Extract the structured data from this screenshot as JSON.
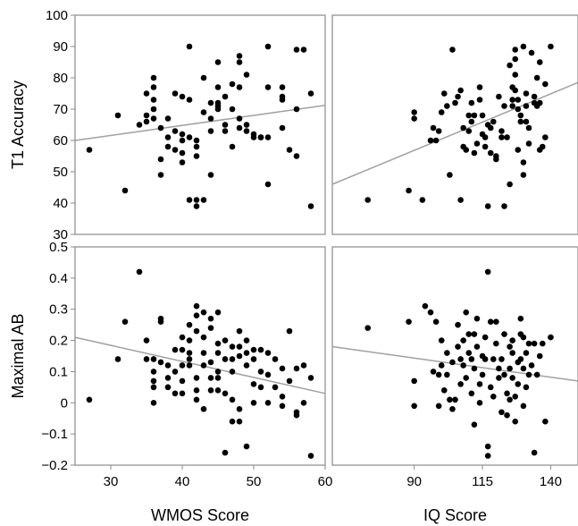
{
  "chart_data": [
    {
      "type": "scatter",
      "id": "t1-wmos",
      "xlabel": "",
      "ylabel": "T1 Accuracy",
      "xlim": [
        25,
        60
      ],
      "ylim": [
        30,
        100
      ],
      "xticks": [],
      "yticks": [
        30,
        40,
        50,
        60,
        70,
        80,
        90,
        100
      ],
      "trend": {
        "x0": 25,
        "y0": 60,
        "x1": 60,
        "y1": 71.2
      },
      "points": [
        [
          27,
          57
        ],
        [
          31,
          68
        ],
        [
          32,
          44
        ],
        [
          34,
          65
        ],
        [
          35,
          75
        ],
        [
          35,
          66
        ],
        [
          35,
          68
        ],
        [
          36,
          80
        ],
        [
          36,
          77
        ],
        [
          36,
          73
        ],
        [
          36,
          70
        ],
        [
          36,
          67
        ],
        [
          37,
          54
        ],
        [
          37,
          49
        ],
        [
          37,
          64
        ],
        [
          38,
          58
        ],
        [
          38,
          61
        ],
        [
          38,
          67
        ],
        [
          39,
          75
        ],
        [
          39,
          63
        ],
        [
          39,
          57
        ],
        [
          40,
          60
        ],
        [
          40,
          62
        ],
        [
          40,
          74
        ],
        [
          40,
          56
        ],
        [
          40,
          53
        ],
        [
          41,
          73
        ],
        [
          41,
          61
        ],
        [
          41,
          90
        ],
        [
          41,
          41
        ],
        [
          42,
          60
        ],
        [
          42,
          58
        ],
        [
          42,
          41
        ],
        [
          42,
          39
        ],
        [
          42,
          55
        ],
        [
          43,
          41
        ],
        [
          43,
          80
        ],
        [
          43,
          69
        ],
        [
          44,
          72
        ],
        [
          44,
          67
        ],
        [
          44,
          63
        ],
        [
          44,
          49
        ],
        [
          45,
          85
        ],
        [
          45,
          77
        ],
        [
          45,
          72
        ],
        [
          45,
          70
        ],
        [
          45,
          71
        ],
        [
          46,
          74
        ],
        [
          46,
          65
        ],
        [
          46,
          63
        ],
        [
          47,
          70
        ],
        [
          47,
          58
        ],
        [
          47,
          78
        ],
        [
          48,
          87
        ],
        [
          48,
          85
        ],
        [
          48,
          77
        ],
        [
          48,
          67
        ],
        [
          48,
          64
        ],
        [
          49,
          81
        ],
        [
          49,
          65
        ],
        [
          49,
          63
        ],
        [
          50,
          62
        ],
        [
          50,
          61
        ],
        [
          51,
          61
        ],
        [
          51,
          61
        ],
        [
          52,
          90
        ],
        [
          52,
          77
        ],
        [
          52,
          46
        ],
        [
          52,
          61
        ],
        [
          54,
          77
        ],
        [
          54,
          74
        ],
        [
          54,
          73
        ],
        [
          54,
          64
        ],
        [
          55,
          57
        ],
        [
          56,
          55
        ],
        [
          56,
          89
        ],
        [
          56,
          70
        ],
        [
          57,
          89
        ],
        [
          58,
          75
        ],
        [
          58,
          39
        ]
      ]
    },
    {
      "type": "scatter",
      "id": "t1-iq",
      "xlabel": "",
      "ylabel": "",
      "xlim": [
        60,
        150
      ],
      "ylim": [
        30,
        100
      ],
      "xticks": [],
      "yticks": [],
      "trend": {
        "x0": 60,
        "y0": 46,
        "x1": 150,
        "y1": 78.5
      },
      "points": [
        [
          73,
          41
        ],
        [
          88,
          44
        ],
        [
          90,
          69
        ],
        [
          90,
          67
        ],
        [
          93,
          41
        ],
        [
          96,
          60
        ],
        [
          97,
          64
        ],
        [
          98,
          60
        ],
        [
          99,
          63
        ],
        [
          100,
          69
        ],
        [
          101,
          75
        ],
        [
          102,
          71
        ],
        [
          103,
          49
        ],
        [
          104,
          89
        ],
        [
          105,
          72
        ],
        [
          106,
          74
        ],
        [
          107,
          76
        ],
        [
          107,
          41
        ],
        [
          108,
          64
        ],
        [
          108,
          58
        ],
        [
          109,
          57
        ],
        [
          110,
          63
        ],
        [
          110,
          68
        ],
        [
          111,
          72
        ],
        [
          111,
          66
        ],
        [
          112,
          56
        ],
        [
          112,
          68
        ],
        [
          113,
          59
        ],
        [
          114,
          77
        ],
        [
          114,
          73
        ],
        [
          115,
          68
        ],
        [
          115,
          62
        ],
        [
          116,
          61
        ],
        [
          116,
          58
        ],
        [
          117,
          39
        ],
        [
          117,
          65
        ],
        [
          118,
          64
        ],
        [
          118,
          56
        ],
        [
          119,
          66
        ],
        [
          120,
          55
        ],
        [
          120,
          54
        ],
        [
          121,
          74
        ],
        [
          122,
          63
        ],
        [
          122,
          61
        ],
        [
          123,
          39
        ],
        [
          123,
          71
        ],
        [
          124,
          61
        ],
        [
          125,
          46
        ],
        [
          125,
          84
        ],
        [
          126,
          77
        ],
        [
          126,
          73
        ],
        [
          126,
          71
        ],
        [
          127,
          89
        ],
        [
          127,
          86
        ],
        [
          127,
          81
        ],
        [
          127,
          76
        ],
        [
          128,
          73
        ],
        [
          128,
          70
        ],
        [
          128,
          57
        ],
        [
          129,
          68
        ],
        [
          129,
          66
        ],
        [
          130,
          90
        ],
        [
          130,
          53
        ],
        [
          130,
          49
        ],
        [
          131,
          75
        ],
        [
          131,
          71
        ],
        [
          131,
          66
        ],
        [
          132,
          64
        ],
        [
          132,
          59
        ],
        [
          133,
          88
        ],
        [
          134,
          74
        ],
        [
          134,
          72
        ],
        [
          135,
          80
        ],
        [
          135,
          71
        ],
        [
          136,
          85
        ],
        [
          136,
          72
        ],
        [
          136,
          57
        ],
        [
          137,
          58
        ],
        [
          138,
          61
        ],
        [
          138,
          78
        ],
        [
          140,
          90
        ]
      ]
    },
    {
      "type": "scatter",
      "id": "ab-wmos",
      "xlabel": "WMOS Score",
      "ylabel": "Maximal AB",
      "xlim": [
        25,
        60
      ],
      "ylim": [
        -0.2,
        0.5
      ],
      "xticks": [
        30,
        40,
        50,
        60
      ],
      "yticks": [
        -0.2,
        -0.1,
        0,
        0.1,
        0.2,
        0.3,
        0.4,
        0.5
      ],
      "ytick_labels": [
        "−0.2",
        "−0.1",
        "0",
        "0.1",
        "0.2",
        "0.3",
        "0.4",
        "0.5"
      ],
      "trend": {
        "x0": 25,
        "y0": 0.21,
        "x1": 60,
        "y1": 0.03
      },
      "points": [
        [
          27,
          0.01
        ],
        [
          31,
          0.14
        ],
        [
          32,
          0.26
        ],
        [
          34,
          0.42
        ],
        [
          35,
          0.2
        ],
        [
          35,
          0.14
        ],
        [
          36,
          0.14
        ],
        [
          36,
          0.1
        ],
        [
          36,
          0.07
        ],
        [
          36,
          0.05
        ],
        [
          36,
          0.0
        ],
        [
          37,
          0.27
        ],
        [
          37,
          0.26
        ],
        [
          37,
          0.13
        ],
        [
          38,
          0.12
        ],
        [
          38,
          0.08
        ],
        [
          38,
          0.05
        ],
        [
          39,
          0.17
        ],
        [
          39,
          0.1
        ],
        [
          39,
          0.03
        ],
        [
          40,
          0.21
        ],
        [
          40,
          0.17
        ],
        [
          40,
          0.12
        ],
        [
          40,
          0.07
        ],
        [
          40,
          0.03
        ],
        [
          41,
          0.25
        ],
        [
          41,
          0.2
        ],
        [
          41,
          0.16
        ],
        [
          41,
          0.14
        ],
        [
          41,
          0.12
        ],
        [
          42,
          0.31
        ],
        [
          42,
          0.28
        ],
        [
          42,
          0.23
        ],
        [
          42,
          0.08
        ],
        [
          42,
          0.04
        ],
        [
          42,
          0.01
        ],
        [
          43,
          0.29
        ],
        [
          43,
          0.21
        ],
        [
          43,
          0.16
        ],
        [
          43,
          0.12
        ],
        [
          43,
          -0.02
        ],
        [
          44,
          0.27
        ],
        [
          44,
          0.24
        ],
        [
          44,
          0.13
        ],
        [
          44,
          0.08
        ],
        [
          44,
          0.04
        ],
        [
          45,
          0.29
        ],
        [
          45,
          0.19
        ],
        [
          45,
          0.16
        ],
        [
          45,
          0.1
        ],
        [
          45,
          0.08
        ],
        [
          45,
          0.04
        ],
        [
          46,
          0.2
        ],
        [
          46,
          0.14
        ],
        [
          46,
          0.03
        ],
        [
          46,
          -0.16
        ],
        [
          47,
          0.18
        ],
        [
          47,
          0.14
        ],
        [
          47,
          0.1
        ],
        [
          47,
          0.01
        ],
        [
          47,
          -0.06
        ],
        [
          48,
          0.23
        ],
        [
          48,
          0.18
        ],
        [
          48,
          0.15
        ],
        [
          48,
          -0.02
        ],
        [
          48,
          -0.06
        ],
        [
          49,
          0.2
        ],
        [
          49,
          0.16
        ],
        [
          49,
          0.12
        ],
        [
          49,
          -0.14
        ],
        [
          50,
          0.17
        ],
        [
          50,
          0.14
        ],
        [
          50,
          0.06
        ],
        [
          50,
          0.0
        ],
        [
          51,
          0.17
        ],
        [
          51,
          0.1
        ],
        [
          51,
          0.05
        ],
        [
          52,
          0.16
        ],
        [
          52,
          0.09
        ],
        [
          52,
          0.0
        ],
        [
          53,
          0.14
        ],
        [
          53,
          0.05
        ],
        [
          54,
          0.11
        ],
        [
          54,
          0.02
        ],
        [
          54,
          -0.01
        ],
        [
          55,
          0.23
        ],
        [
          55,
          0.07
        ],
        [
          56,
          0.11
        ],
        [
          56,
          -0.03
        ],
        [
          56,
          -0.04
        ],
        [
          57,
          0.12
        ],
        [
          57,
          0.0
        ],
        [
          58,
          0.08
        ],
        [
          58,
          -0.17
        ]
      ]
    },
    {
      "type": "scatter",
      "id": "ab-iq",
      "xlabel": "IQ Score",
      "ylabel": "",
      "xlim": [
        60,
        150
      ],
      "ylim": [
        -0.2,
        0.5
      ],
      "xticks": [
        90,
        115,
        140
      ],
      "yticks": [],
      "trend": {
        "x0": 60,
        "y0": 0.18,
        "x1": 150,
        "y1": 0.07
      },
      "points": [
        [
          73,
          0.24
        ],
        [
          88,
          0.26
        ],
        [
          90,
          0.07
        ],
        [
          90,
          -0.01
        ],
        [
          94,
          0.31
        ],
        [
          96,
          0.29
        ],
        [
          97,
          0.1
        ],
        [
          98,
          0.26
        ],
        [
          99,
          0.09
        ],
        [
          99,
          -0.01
        ],
        [
          100,
          0.2
        ],
        [
          100,
          0.12
        ],
        [
          101,
          0.04
        ],
        [
          102,
          0.16
        ],
        [
          102,
          0.09
        ],
        [
          103,
          0.01
        ],
        [
          104,
          -0.02
        ],
        [
          104,
          0.13
        ],
        [
          105,
          0.01
        ],
        [
          106,
          0.25
        ],
        [
          106,
          0.18
        ],
        [
          107,
          0.14
        ],
        [
          107,
          0.06
        ],
        [
          108,
          0.2
        ],
        [
          108,
          0.12
        ],
        [
          109,
          0.29
        ],
        [
          109,
          0.08
        ],
        [
          110,
          0.22
        ],
        [
          110,
          0.16
        ],
        [
          111,
          0.14
        ],
        [
          111,
          0.03
        ],
        [
          112,
          0.22
        ],
        [
          112,
          0.11
        ],
        [
          112,
          -0.07
        ],
        [
          113,
          0.27
        ],
        [
          113,
          0.18
        ],
        [
          114,
          0.06
        ],
        [
          114,
          0.0
        ],
        [
          115,
          0.15
        ],
        [
          115,
          0.09
        ],
        [
          116,
          0.21
        ],
        [
          116,
          0.14
        ],
        [
          117,
          0.42
        ],
        [
          117,
          -0.14
        ],
        [
          117,
          -0.17
        ],
        [
          118,
          0.26
        ],
        [
          118,
          0.05
        ],
        [
          119,
          0.14
        ],
        [
          119,
          0.02
        ],
        [
          120,
          0.26
        ],
        [
          120,
          0.19
        ],
        [
          121,
          0.11
        ],
        [
          121,
          0.08
        ],
        [
          122,
          0.14
        ],
        [
          122,
          -0.03
        ],
        [
          123,
          0.22
        ],
        [
          123,
          0.09
        ],
        [
          124,
          0.03
        ],
        [
          124,
          -0.04
        ],
        [
          125,
          0.18
        ],
        [
          125,
          0.11
        ],
        [
          125,
          0.01
        ],
        [
          126,
          0.2
        ],
        [
          126,
          0.16
        ],
        [
          126,
          0.08
        ],
        [
          127,
          0.02
        ],
        [
          127,
          -0.06
        ],
        [
          128,
          0.13
        ],
        [
          128,
          0.06
        ],
        [
          129,
          0.27
        ],
        [
          129,
          0.22
        ],
        [
          129,
          0.14
        ],
        [
          130,
          0.21
        ],
        [
          130,
          0.11
        ],
        [
          130,
          -0.01
        ],
        [
          131,
          0.16
        ],
        [
          131,
          0.05
        ],
        [
          132,
          0.19
        ],
        [
          132,
          0.09
        ],
        [
          133,
          0.12
        ],
        [
          134,
          0.19
        ],
        [
          134,
          -0.16
        ],
        [
          135,
          0.09
        ],
        [
          136,
          0.15
        ],
        [
          137,
          0.19
        ],
        [
          138,
          -0.06
        ],
        [
          140,
          0.21
        ]
      ]
    }
  ]
}
